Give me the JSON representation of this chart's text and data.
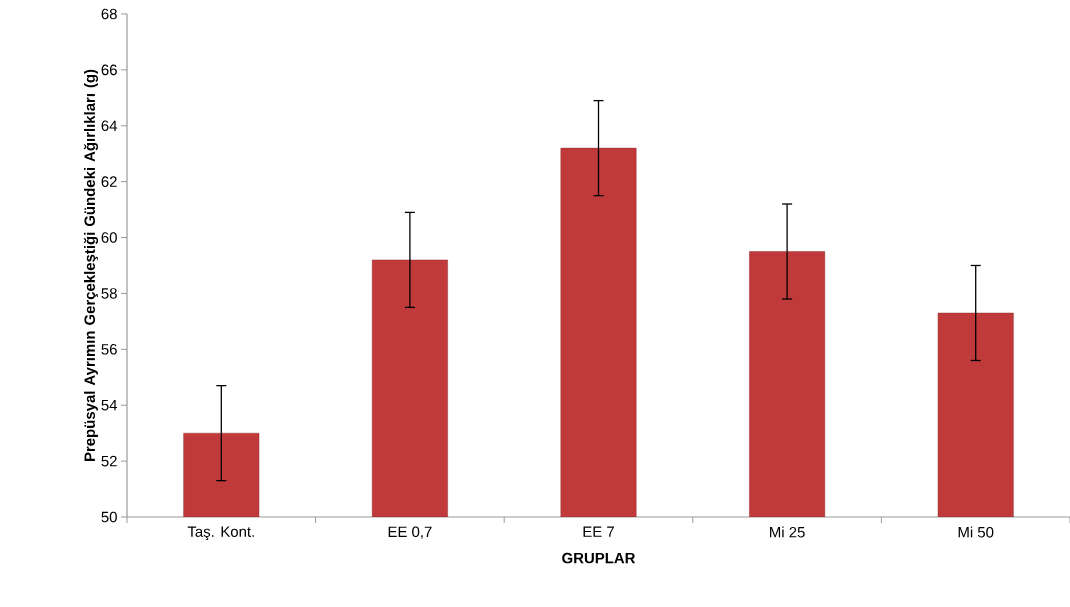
{
  "chart_data": {
    "type": "bar",
    "ylabel": "Prepüsyal Ayrımın Gerçekleştiği Gündeki Ağırlıkları (g)",
    "xlabel": "GRUPLAR",
    "categories": [
      "Taş. Kont.",
      "EE 0,7",
      "EE 7",
      "Mi 25",
      "Mi 50"
    ],
    "values": [
      53.0,
      59.2,
      63.2,
      59.5,
      57.3
    ],
    "errors": [
      1.7,
      1.7,
      1.7,
      1.7,
      1.7
    ],
    "color": "#c0393b",
    "ylim": [
      50,
      68
    ],
    "yticks": [
      50,
      52,
      54,
      56,
      58,
      60,
      62,
      64,
      66,
      68
    ],
    "grid": false
  }
}
